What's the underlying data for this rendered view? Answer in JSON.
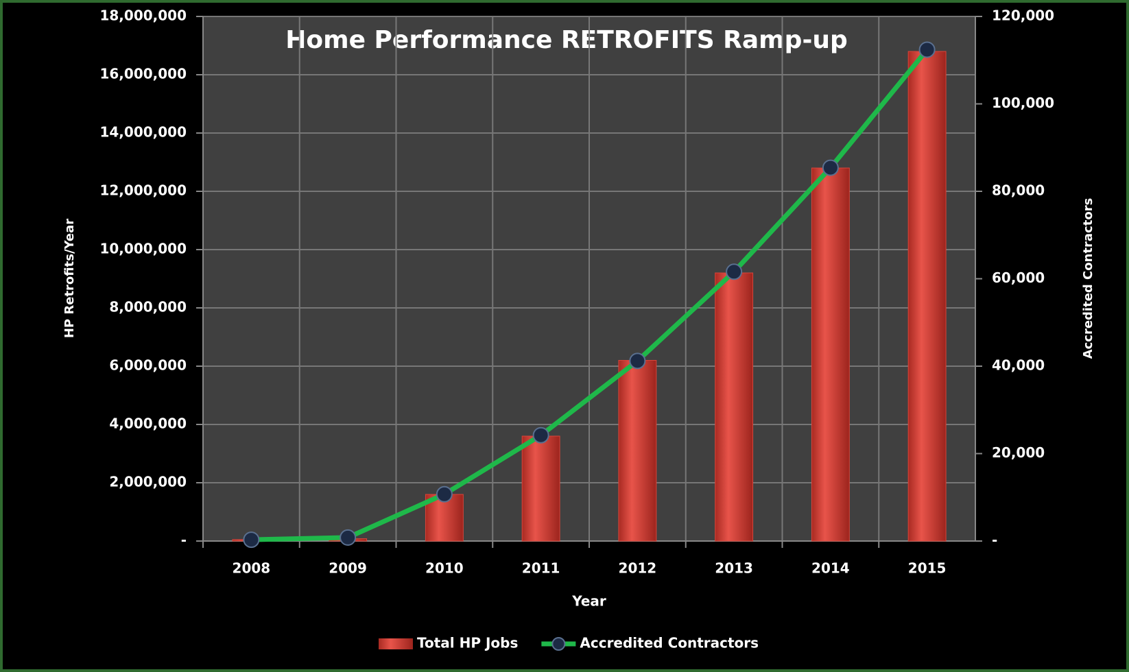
{
  "chart_data": {
    "type": "bar",
    "title": "Home Performance RETROFITS Ramp-up",
    "x_label": "Year",
    "y_label": "HP Retrofits/Year",
    "y2_label": "Accredited Contractors",
    "categories": [
      "2008",
      "2009",
      "2010",
      "2011",
      "2012",
      "2013",
      "2014",
      "2015"
    ],
    "series": [
      {
        "name": "Total HP Jobs",
        "type": "bar",
        "color": "#d9443a",
        "values": [
          50000,
          80000,
          1600000,
          3600000,
          6200000,
          9200000,
          12800000,
          16800000
        ]
      },
      {
        "name": "Accredited Contractors",
        "type": "line",
        "axis": "y2",
        "color": "#1fb84a",
        "marker_color": "#1c2a44",
        "values": [
          300,
          800,
          10700,
          24200,
          41200,
          61600,
          85400,
          112400
        ]
      }
    ],
    "ylim": [
      0,
      18000000
    ],
    "yticks": [
      {
        "value": 0,
        "label": "-"
      },
      {
        "value": 2000000,
        "label": "2,000,000"
      },
      {
        "value": 4000000,
        "label": "4,000,000"
      },
      {
        "value": 6000000,
        "label": "6,000,000"
      },
      {
        "value": 8000000,
        "label": "8,000,000"
      },
      {
        "value": 10000000,
        "label": "10,000,000"
      },
      {
        "value": 12000000,
        "label": "12,000,000"
      },
      {
        "value": 14000000,
        "label": "14,000,000"
      },
      {
        "value": 16000000,
        "label": "16,000,000"
      },
      {
        "value": 18000000,
        "label": "18,000,000"
      }
    ],
    "y2lim": [
      0,
      120000
    ],
    "y2ticks": [
      {
        "value": 0,
        "label": "-"
      },
      {
        "value": 20000,
        "label": "20,000"
      },
      {
        "value": 40000,
        "label": "40,000"
      },
      {
        "value": 60000,
        "label": "60,000"
      },
      {
        "value": 80000,
        "label": "80,000"
      },
      {
        "value": 100000,
        "label": "100,000"
      },
      {
        "value": 120000,
        "label": "120,000"
      }
    ],
    "grid": true,
    "legend": "bottom"
  }
}
